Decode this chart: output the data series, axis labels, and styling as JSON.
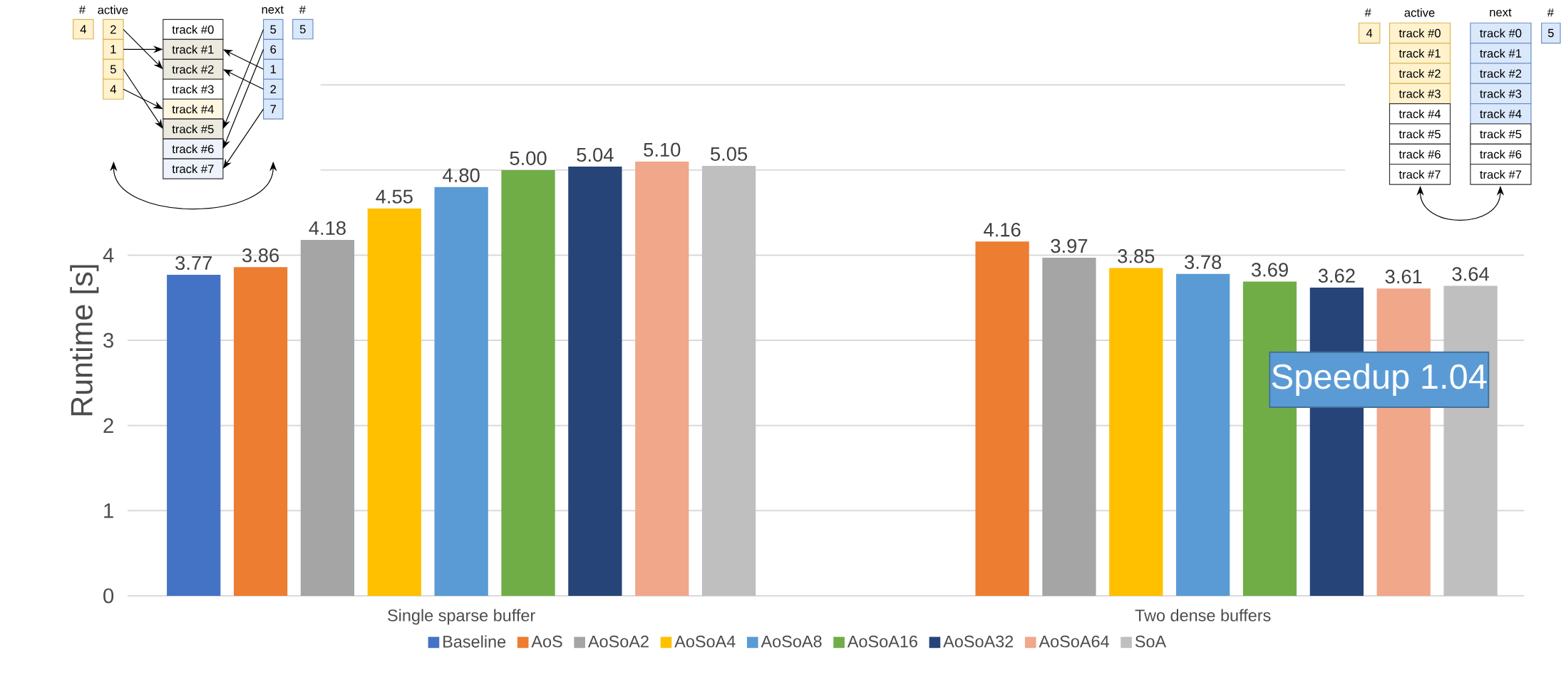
{
  "chart_data": {
    "type": "bar",
    "ylabel": "Runtime [s]",
    "categories": [
      "Single sparse buffer",
      "Two dense buffers"
    ],
    "series": [
      {
        "name": "Baseline",
        "color": "#4472c4",
        "values": [
          3.77,
          null
        ],
        "value_labels": [
          "3.77",
          null
        ]
      },
      {
        "name": "AoS",
        "color": "#ed7d31",
        "values": [
          3.86,
          4.16
        ],
        "value_labels": [
          "3.86",
          "4.16"
        ]
      },
      {
        "name": "AoSoA2",
        "color": "#a5a5a5",
        "values": [
          4.18,
          3.97
        ],
        "value_labels": [
          "4.18",
          "3.97"
        ]
      },
      {
        "name": "AoSoA4",
        "color": "#ffc000",
        "values": [
          4.55,
          3.85
        ],
        "value_labels": [
          "4.55",
          "3.85"
        ]
      },
      {
        "name": "AoSoA8",
        "color": "#5b9bd5",
        "values": [
          4.8,
          3.78
        ],
        "value_labels": [
          "4.80",
          "3.78"
        ]
      },
      {
        "name": "AoSoA16",
        "color": "#70ad47",
        "values": [
          5.0,
          3.69
        ],
        "value_labels": [
          "5.00",
          "3.69"
        ]
      },
      {
        "name": "AoSoA32",
        "color": "#264478",
        "values": [
          5.04,
          3.62
        ],
        "value_labels": [
          "5.04",
          "3.62"
        ]
      },
      {
        "name": "AoSoA64",
        "color": "#f1a78a",
        "values": [
          5.1,
          3.61
        ],
        "value_labels": [
          "5.10",
          "3.61"
        ]
      },
      {
        "name": "SoA",
        "color": "#bfbfbf",
        "values": [
          5.05,
          3.64
        ],
        "value_labels": [
          "5.05",
          "3.64"
        ]
      }
    ],
    "ylim": [
      0,
      6
    ],
    "yticks": [
      0,
      1,
      2,
      3,
      4,
      {
        "value": 5,
        "label": null
      },
      {
        "value": 6,
        "label": null
      }
    ],
    "grid": "y",
    "legend": "bottom",
    "annotations": [
      "#",
      "active",
      "next",
      "#",
      "4",
      "2",
      "1",
      "5",
      "4",
      "track #0",
      "track #1",
      "track #2",
      "track #3",
      "track #4",
      "track #5",
      "track #6",
      "track #7",
      "5",
      "6",
      "1",
      "2",
      "7",
      "5",
      "#",
      "active",
      "next",
      "#",
      "4",
      "track #0",
      "track #1",
      "track #2",
      "track #3",
      "track #4",
      "track #5",
      "track #6",
      "track #7",
      "track #0",
      "track #1",
      "track #2",
      "track #3",
      "track #4",
      "track #5",
      "track #6",
      "track #7",
      "5",
      "Speedup 1.04"
    ]
  }
}
